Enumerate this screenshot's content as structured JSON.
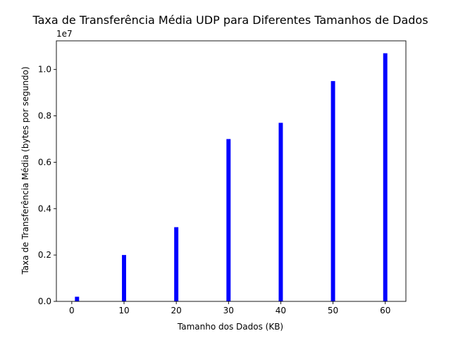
{
  "chart_data": {
    "type": "bar",
    "title": "Taxa de Transferência Média UDP para Diferentes Tamanhos de Dados",
    "xlabel": "Tamanho dos Dados (KB)",
    "ylabel": "Taxa de Transferência Média (bytes por segundo)",
    "y_offset_label": "1e7",
    "x": [
      1,
      10,
      20,
      30,
      40,
      50,
      60
    ],
    "values": [
      200000,
      2000000,
      3200000,
      7000000,
      7700000,
      9500000,
      10700000
    ],
    "bar_width": 0.8,
    "bar_color": "#0000ff",
    "xlim": [
      -2.95,
      63.95
    ],
    "ylim": [
      0,
      11235000
    ],
    "x_ticks": [
      0,
      10,
      20,
      30,
      40,
      50,
      60
    ],
    "x_tick_labels": [
      "0",
      "10",
      "20",
      "30",
      "40",
      "50",
      "60"
    ],
    "y_ticks": [
      0,
      2000000,
      4000000,
      6000000,
      8000000,
      10000000
    ],
    "y_tick_labels": [
      "0.0",
      "0.2",
      "0.4",
      "0.6",
      "0.8",
      "1.0"
    ],
    "grid": false
  }
}
